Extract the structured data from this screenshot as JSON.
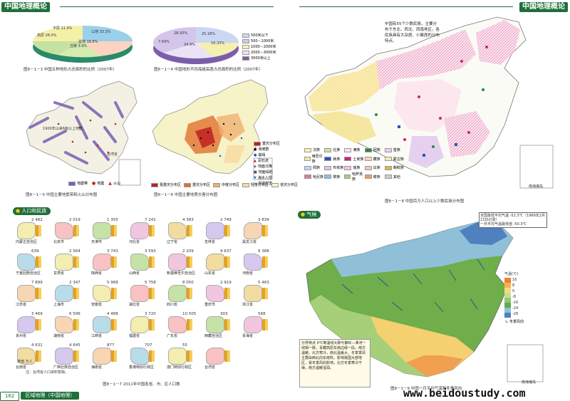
{
  "header": {
    "left_title": "中国地理概论",
    "right_title": "中国地理概论"
  },
  "fig3": {
    "caption": "图8－1－3  中国五种地形占总面积的比例（2007年）",
    "labels": [
      "高原 26.0%",
      "山地 33.3%",
      "丘陵 9.9%",
      "盆地 18.8%",
      "平原 11.9%"
    ]
  },
  "fig4": {
    "caption": "图8－1－4  中国地形不同海拔高度占总面积的比例（2007年）",
    "labels": [
      "25.18%",
      "28.93%",
      "7.69%",
      "24.9%",
      "16.33%"
    ],
    "legend": [
      "500米以下",
      "500－1000米",
      "1000－2000米",
      "2000－3000米",
      "3000米以上"
    ]
  },
  "fig5": {
    "caption": "图8－1－5  中国主要地震带和火山分布图",
    "legend": [
      "地震带",
      "地震",
      "火山"
    ],
    "notes": [
      "1900年以来6级以上地震",
      "台湾省"
    ]
  },
  "fig6": {
    "caption": "图8－1－6  中国主要地质灾害分布图",
    "legend": [
      "重灾分布区",
      "滑坡群",
      "崩塌",
      "泥石流",
      "地面沉降",
      "地面塌陷",
      "海水入侵",
      "洪涝灾害"
    ],
    "bottom_legend": [
      "极重灾分布区",
      "重灾分布区",
      "中度分布区",
      "轻度分布区",
      "低灾分布区"
    ]
  },
  "fig7": {
    "section": "人口和民族",
    "caption": "图8－1－7  2011年中国各省、市、区人口数",
    "note": "注：台湾省人口资料暂缺。",
    "unit_note": "数值 万人",
    "regions": [
      {
        "name": "内蒙古自治区",
        "value": "2 482"
      },
      {
        "name": "北京市",
        "value": "2 019"
      },
      {
        "name": "天津市",
        "value": "1 355"
      },
      {
        "name": "河北省",
        "value": "7 241"
      },
      {
        "name": "辽宁省",
        "value": "4 383"
      },
      {
        "name": "吉林省",
        "value": "2 749"
      },
      {
        "name": "黑龙江省",
        "value": "3 834"
      },
      {
        "name": "宁夏回族自治区",
        "value": "639"
      },
      {
        "name": "甘肃省",
        "value": "2 564"
      },
      {
        "name": "陕西省",
        "value": "3 743"
      },
      {
        "name": "山西省",
        "value": "3 593"
      },
      {
        "name": "新疆维吾尔自治区",
        "value": "2 209"
      },
      {
        "name": "山东省",
        "value": "9 637"
      },
      {
        "name": "河南省",
        "value": "9 388"
      },
      {
        "name": "江苏省",
        "value": "7 899"
      },
      {
        "name": "上海市",
        "value": "2 347"
      },
      {
        "name": "安徽省",
        "value": "5 968"
      },
      {
        "name": "湖北省",
        "value": "5 758"
      },
      {
        "name": "四川省",
        "value": "8 050"
      },
      {
        "name": "重庆市",
        "value": "2 919"
      },
      {
        "name": "浙江省",
        "value": "5 463"
      },
      {
        "name": "贵州省",
        "value": "3 469"
      },
      {
        "name": "湖南省",
        "value": "6 596"
      },
      {
        "name": "江西省",
        "value": "4 488"
      },
      {
        "name": "福建省",
        "value": "3 720"
      },
      {
        "name": "广东省",
        "value": "10 505"
      },
      {
        "name": "西藏自治区",
        "value": "303"
      },
      {
        "name": "青海省",
        "value": "568"
      },
      {
        "name": "云南省",
        "value": "4 631"
      },
      {
        "name": "广西壮族自治区",
        "value": "4 645"
      },
      {
        "name": "海南省",
        "value": "877"
      },
      {
        "name": "香港特别行政区",
        "value": "707"
      },
      {
        "name": "澳门特别行政区",
        "value": "55"
      },
      {
        "name": "台湾省",
        "value": ""
      }
    ]
  },
  "fig8": {
    "caption": "图8－1－8  中国百万人口以上少数民族分布图",
    "text": "中国有55个少数民族，主要分布于东北、西北、西南地区，各民族具有大杂居、小聚居的分布特点。",
    "legend": [
      "汉族",
      "壮族",
      "满族",
      "回族",
      "苗族",
      "维吾尔族",
      "彝族",
      "土家族",
      "藏族",
      "蒙古族",
      "侗族",
      "布依族",
      "瑶族",
      "白族",
      "朝鲜族",
      "哈尼族",
      "黎族",
      "哈萨克族",
      "傣族",
      "其他"
    ],
    "inset": "南海诸岛"
  },
  "fig9": {
    "section": "气候",
    "caption": "图8－1－9  中国一月平均气温和冬季风向",
    "callout1": "全国最低平均气温 -52.3℃（1969年2月13日记录）",
    "callout2": "一月平均气温最低值 -50.3℃",
    "text": "分界特点  0℃等温线大致与秦岭—淮河一线相一致，青藏高原东南边缘一段。南方温暖，北方寒冷，南北温差大。冬季季风  主要由西北向东南吹，影响我国大部地区，受冬季风的影响，北方冬季寒冷干燥，南方温暖湿润。",
    "legend_title": "气温(℃)",
    "legend": [
      "16",
      "8",
      "0",
      "-8",
      "-16",
      "-24",
      "-28"
    ],
    "wind": "冬季风向",
    "inset": "南海诸岛"
  },
  "footer": {
    "page": "162",
    "book": "区域地理（中国地理）",
    "watermark": "www.beidoustudy.com"
  }
}
